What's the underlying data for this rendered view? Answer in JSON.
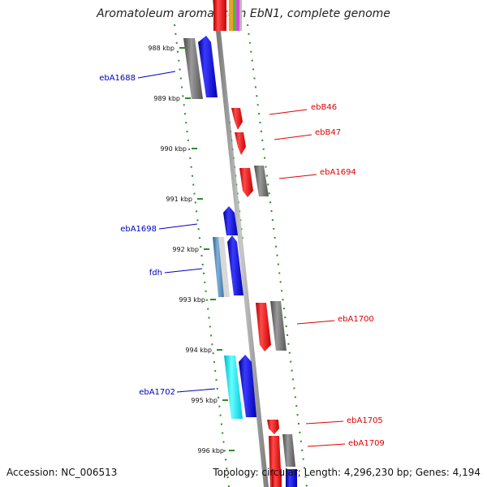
{
  "header": {
    "title": "Aromatoleum aromaticum EbN1, complete genome"
  },
  "footer": {
    "accession": "Accession: NC_006513",
    "summary": "Topology: circular; Length: 4,296,230 bp; Genes: 4,194"
  },
  "colors": {
    "axis": "#8e8e8e",
    "tick": "#2e8b2e",
    "label_blue": "#0000c0",
    "label_red": "#e00000",
    "gene_red": "#ff1a1a",
    "gene_blue": "#1010e0",
    "gene_gray": "#7a7a7a",
    "gene_cyan": "#00e0e0",
    "gene_steel": "#4a86c0"
  },
  "ticks": [
    "988 kbp",
    "989 kbp",
    "990 kbp",
    "991 kbp",
    "992 kbp",
    "993 kbp",
    "994 kbp",
    "995 kbp",
    "996 kbp"
  ],
  "gene_labels": {
    "left": [
      "ebA1688",
      "ebA1698",
      "fdh",
      "ebA1702"
    ],
    "right": [
      "ebB46",
      "ebB47",
      "ebA1694",
      "ebA1700",
      "ebA1705",
      "ebA1709"
    ]
  }
}
